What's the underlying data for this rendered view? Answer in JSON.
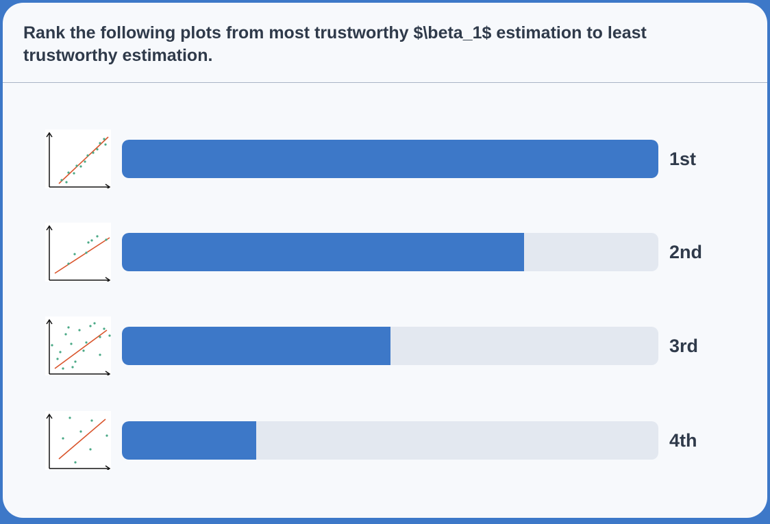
{
  "question": {
    "text": "Rank the following plots from most trustworthy $\\beta_1$ estimation to least trustworthy estimation."
  },
  "colors": {
    "accent": "#3d78c8",
    "track": "#e3e8f0",
    "regression_line": "#d9542b",
    "data_points": "#4aa986"
  },
  "rankings": [
    {
      "rank_label": "1st",
      "fill_fraction": 1.0,
      "thumbnail": "scatter-tight-fit-icon"
    },
    {
      "rank_label": "2nd",
      "fill_fraction": 0.75,
      "thumbnail": "scatter-sparse-fit-icon"
    },
    {
      "rank_label": "3rd",
      "fill_fraction": 0.5,
      "thumbnail": "scatter-wide-spread-icon"
    },
    {
      "rank_label": "4th",
      "fill_fraction": 0.25,
      "thumbnail": "scatter-few-points-icon"
    }
  ]
}
